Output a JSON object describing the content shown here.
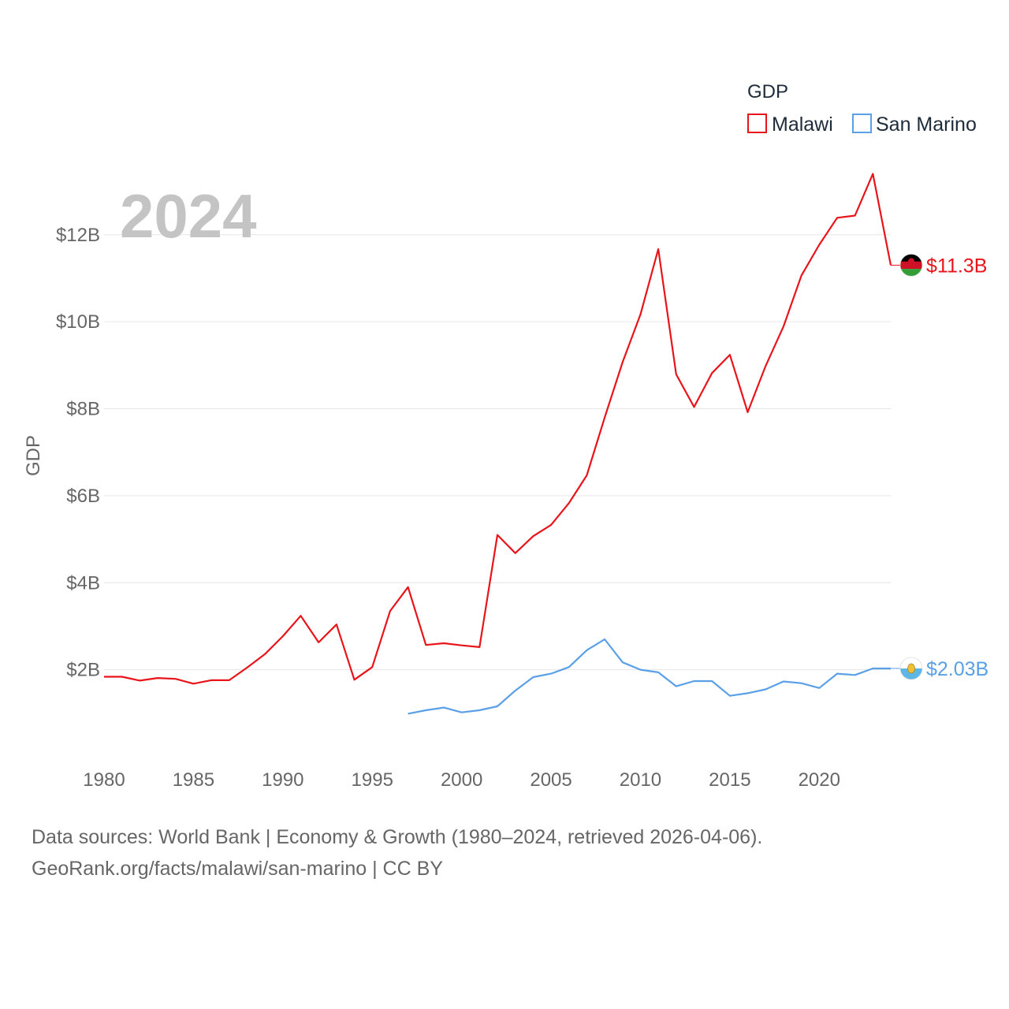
{
  "chart_data": {
    "type": "line",
    "title": "",
    "year_label": "2024",
    "ylabel": "GDP",
    "xlabel": "",
    "xlim": [
      1980,
      2024
    ],
    "ylim": [
      0,
      13.5
    ],
    "x_ticks": [
      1980,
      1985,
      1990,
      1995,
      2000,
      2005,
      2010,
      2015,
      2020
    ],
    "y_ticks": [
      {
        "value": 2,
        "label": "$2B"
      },
      {
        "value": 4,
        "label": "$4B"
      },
      {
        "value": 6,
        "label": "$6B"
      },
      {
        "value": 8,
        "label": "$8B"
      },
      {
        "value": 10,
        "label": "$10B"
      },
      {
        "value": 12,
        "label": "$12B"
      }
    ],
    "legend": {
      "title": "GDP",
      "position": "top-right"
    },
    "series": [
      {
        "name": "Malawi",
        "color": "#e8141a",
        "end_label": "$11.3B",
        "flag_icon": "malawi-flag-icon",
        "x": [
          1980,
          1981,
          1982,
          1983,
          1984,
          1985,
          1986,
          1987,
          1988,
          1989,
          1990,
          1991,
          1992,
          1993,
          1994,
          1995,
          1996,
          1997,
          1998,
          1999,
          2000,
          2001,
          2002,
          2003,
          2004,
          2005,
          2006,
          2007,
          2008,
          2009,
          2010,
          2011,
          2012,
          2013,
          2014,
          2015,
          2016,
          2017,
          2018,
          2019,
          2020,
          2021,
          2022,
          2023,
          2024
        ],
        "values": [
          1.84,
          1.84,
          1.75,
          1.81,
          1.79,
          1.68,
          1.76,
          1.76,
          2.05,
          2.36,
          2.77,
          3.24,
          2.63,
          3.04,
          1.77,
          2.06,
          3.35,
          3.9,
          2.57,
          2.61,
          2.56,
          2.52,
          5.1,
          4.68,
          5.07,
          5.33,
          5.83,
          6.47,
          7.8,
          9.07,
          10.17,
          11.67,
          8.79,
          8.04,
          8.82,
          9.24,
          7.92,
          8.98,
          9.89,
          11.06,
          11.77,
          12.39,
          12.44,
          13.4,
          11.3
        ]
      },
      {
        "name": "San Marino",
        "color": "#5aa0e6",
        "end_label": "$2.03B",
        "flag_icon": "san-marino-flag-icon",
        "x": [
          1997,
          1998,
          1999,
          2000,
          2001,
          2002,
          2003,
          2004,
          2005,
          2006,
          2007,
          2008,
          2009,
          2010,
          2011,
          2012,
          2013,
          2014,
          2015,
          2016,
          2017,
          2018,
          2019,
          2020,
          2021,
          2022,
          2023,
          2024
        ],
        "values": [
          0.99,
          1.07,
          1.13,
          1.02,
          1.07,
          1.16,
          1.52,
          1.83,
          1.91,
          2.06,
          2.45,
          2.7,
          2.17,
          2.0,
          1.94,
          1.62,
          1.74,
          1.74,
          1.4,
          1.46,
          1.55,
          1.73,
          1.69,
          1.58,
          1.91,
          1.88,
          2.03,
          2.03
        ]
      }
    ]
  },
  "footer": {
    "source_line1": "Data sources: World Bank | Economy & Growth (1980–2024, retrieved 2026-04-06).",
    "source_line2": "GeoRank.org/facts/malawi/san-marino | CC BY"
  }
}
